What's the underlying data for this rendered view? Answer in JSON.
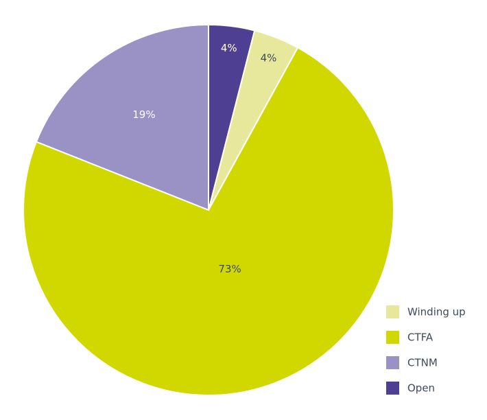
{
  "chart_data": {
    "type": "pie",
    "categories": [
      "Winding up",
      "CTFA",
      "CTNM",
      "Open"
    ],
    "values": [
      4,
      73,
      19,
      4
    ],
    "value_labels": [
      "4%",
      "73%",
      "19%",
      "4%"
    ],
    "colors": [
      "#e8e89c",
      "#d0d800",
      "#9a92c4",
      "#4f3f93"
    ],
    "legend": "bottom-right"
  }
}
